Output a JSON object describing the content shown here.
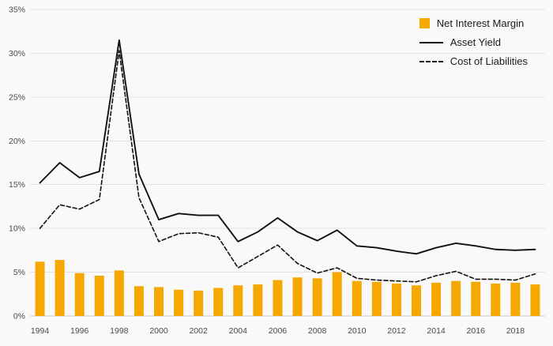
{
  "chart_data": {
    "type": "bar",
    "combo": "bar + two lines",
    "x": [
      1994,
      1995,
      1996,
      1997,
      1998,
      1999,
      2000,
      2001,
      2002,
      2003,
      2004,
      2005,
      2006,
      2007,
      2008,
      2009,
      2010,
      2011,
      2012,
      2013,
      2014,
      2015,
      2016,
      2017,
      2018,
      2019
    ],
    "series": [
      {
        "name": "Net Interest Margin",
        "render": "bar",
        "color": "#F5A800",
        "values": [
          6.2,
          6.4,
          4.9,
          4.6,
          5.2,
          3.4,
          3.3,
          3.0,
          2.9,
          3.2,
          3.5,
          3.6,
          4.1,
          4.4,
          4.3,
          5.0,
          4.0,
          3.9,
          3.7,
          3.5,
          3.8,
          4.0,
          3.9,
          3.7,
          3.8,
          3.6
        ]
      },
      {
        "name": "Asset Yield",
        "render": "line",
        "style": "solid",
        "color": "#111111",
        "values": [
          15.2,
          17.5,
          15.8,
          16.5,
          31.5,
          16.2,
          11.0,
          11.7,
          11.5,
          11.5,
          8.5,
          9.6,
          11.2,
          9.6,
          8.6,
          9.8,
          8.0,
          7.8,
          7.4,
          7.1,
          7.8,
          8.3,
          8.0,
          7.6,
          7.5,
          7.6
        ]
      },
      {
        "name": "Cost of Liabilities",
        "render": "line",
        "style": "dashed",
        "color": "#111111",
        "values": [
          10.0,
          12.7,
          12.2,
          13.3,
          30.3,
          13.5,
          8.5,
          9.4,
          9.5,
          9.0,
          5.5,
          6.8,
          8.1,
          6.0,
          4.9,
          5.5,
          4.3,
          4.1,
          4.0,
          3.9,
          4.6,
          5.1,
          4.2,
          4.2,
          4.1,
          4.8
        ]
      }
    ],
    "ylim": [
      0,
      35
    ],
    "ytick_step": 5,
    "ytick_labels": [
      "0%",
      "5%",
      "10%",
      "15%",
      "20%",
      "25%",
      "30%",
      "35%"
    ],
    "xtick_labels": [
      "1994",
      "1996",
      "1998",
      "2000",
      "2002",
      "2004",
      "2006",
      "2008",
      "2010",
      "2012",
      "2014",
      "2016",
      "2018"
    ],
    "grid": true,
    "legend_position": "top-right",
    "background": "#f9f9f9",
    "gridline_color": "#e2e2e2"
  }
}
